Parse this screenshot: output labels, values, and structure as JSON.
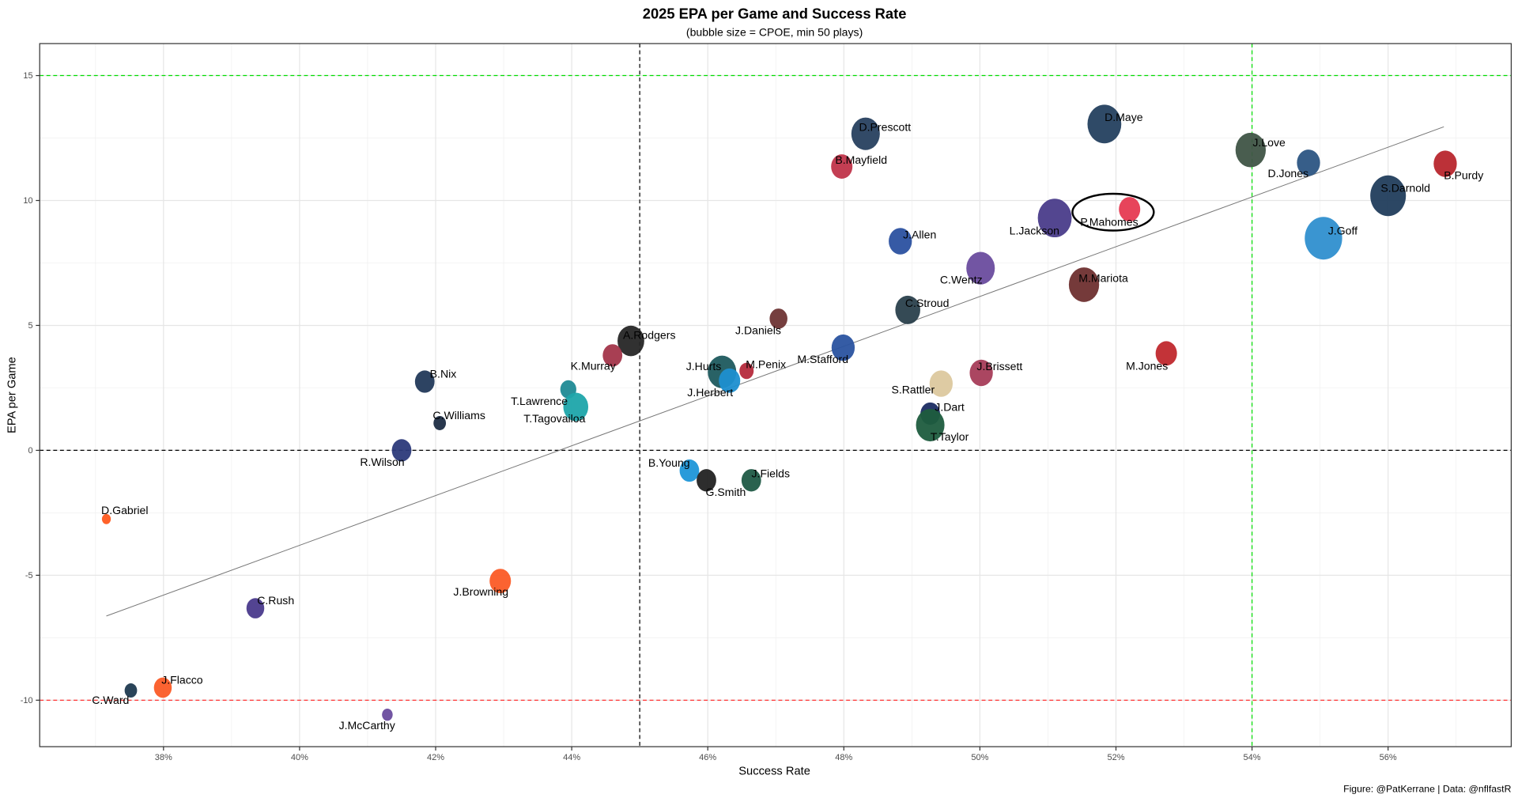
{
  "chart_data": {
    "type": "scatter",
    "title": "2025 EPA per Game and Success Rate",
    "subtitle": "(bubble size = CPOE, min 50 plays)",
    "xlabel": "Success Rate",
    "ylabel": "EPA per Game",
    "caption": "Figure: @PatKerrane | Data: @nflfastR",
    "xlim": [
      36.18,
      57.81
    ],
    "ylim": [
      -11.86,
      16.28
    ],
    "x_ticks": [
      38,
      40,
      42,
      44,
      46,
      48,
      50,
      52,
      54,
      56
    ],
    "x_tick_labels": [
      "38%",
      "40%",
      "42%",
      "44%",
      "46%",
      "48%",
      "50%",
      "52%",
      "54%",
      "56%"
    ],
    "y_ticks": [
      -10,
      -5,
      0,
      5,
      10,
      15
    ],
    "y_tick_labels": [
      "-10",
      "-5",
      "0",
      "5",
      "10",
      "15"
    ],
    "grid": true,
    "reference_lines": [
      {
        "axis": "x",
        "value": 45,
        "color": "#000000"
      },
      {
        "axis": "x",
        "value": 54,
        "color": "#00dd00"
      },
      {
        "axis": "y",
        "value": 0,
        "color": "#000000"
      },
      {
        "axis": "y",
        "value": 15,
        "color": "#00dd00"
      },
      {
        "axis": "y",
        "value": -10,
        "color": "#ff3333"
      }
    ],
    "trend_line": {
      "x": [
        37.16,
        56.82
      ],
      "y": [
        -6.63,
        12.95
      ],
      "color": "#777777"
    },
    "highlight": "P.Mahomes",
    "points": [
      {
        "name": "D.Prescott",
        "x": 48.32,
        "y": 12.67,
        "size": 16,
        "color": "#27405f"
      },
      {
        "name": "D.Maye",
        "x": 51.83,
        "y": 13.06,
        "size": 19,
        "color": "#24405f"
      },
      {
        "name": "B.Mayfield",
        "x": 47.97,
        "y": 11.36,
        "size": 12,
        "color": "#c0344a"
      },
      {
        "name": "J.Love",
        "x": 53.98,
        "y": 12.02,
        "size": 17,
        "color": "#3f5446"
      },
      {
        "name": "D.Jones",
        "x": 54.83,
        "y": 11.51,
        "size": 13,
        "color": "#2c5583"
      },
      {
        "name": "B.Purdy",
        "x": 56.84,
        "y": 11.47,
        "size": 13,
        "color": "#b8262d"
      },
      {
        "name": "S.Darnold",
        "x": 56.0,
        "y": 10.19,
        "size": 20,
        "color": "#213d5c"
      },
      {
        "name": "P.Mahomes",
        "x": 52.2,
        "y": 9.65,
        "size": 12,
        "color": "#e63a52"
      },
      {
        "name": "L.Jackson",
        "x": 51.1,
        "y": 9.3,
        "size": 19,
        "color": "#4a3c8a"
      },
      {
        "name": "J.Goff",
        "x": 55.05,
        "y": 8.49,
        "size": 21,
        "color": "#2f8fcf"
      },
      {
        "name": "J.Allen",
        "x": 48.83,
        "y": 8.37,
        "size": 13,
        "color": "#2b51a0"
      },
      {
        "name": "C.Wentz",
        "x": 50.01,
        "y": 7.29,
        "size": 16,
        "color": "#6a4c9e"
      },
      {
        "name": "M.Mariota",
        "x": 51.53,
        "y": 6.63,
        "size": 17,
        "color": "#6e2f2f"
      },
      {
        "name": "C.Stroud",
        "x": 48.94,
        "y": 5.62,
        "size": 14,
        "color": "#2a404c"
      },
      {
        "name": "J.Daniels",
        "x": 47.04,
        "y": 5.27,
        "size": 10,
        "color": "#6e3434"
      },
      {
        "name": "A.Rodgers",
        "x": 44.87,
        "y": 4.38,
        "size": 15,
        "color": "#262626"
      },
      {
        "name": "K.Murray",
        "x": 44.6,
        "y": 3.8,
        "size": 11,
        "color": "#a3354a"
      },
      {
        "name": "M.Stafford",
        "x": 47.99,
        "y": 4.11,
        "size": 13,
        "color": "#2a53a0"
      },
      {
        "name": "M.Jones",
        "x": 52.74,
        "y": 3.88,
        "size": 12,
        "color": "#c0282d"
      },
      {
        "name": "J.Hurts",
        "x": 46.21,
        "y": 3.14,
        "size": 16,
        "color": "#1d5a5e"
      },
      {
        "name": "M.Penix",
        "x": 46.57,
        "y": 3.18,
        "size": 8,
        "color": "#b52a3c"
      },
      {
        "name": "J.Herbert",
        "x": 46.32,
        "y": 2.79,
        "size": 12,
        "color": "#1d8fd0"
      },
      {
        "name": "J.Brissett",
        "x": 50.02,
        "y": 3.1,
        "size": 13,
        "color": "#a63c58"
      },
      {
        "name": "S.Rattler",
        "x": 49.43,
        "y": 2.67,
        "size": 13,
        "color": "#dcc89e"
      },
      {
        "name": "B.Nix",
        "x": 41.84,
        "y": 2.75,
        "size": 11,
        "color": "#22395a"
      },
      {
        "name": "T.Lawrence",
        "x": 43.95,
        "y": 2.44,
        "size": 9,
        "color": "#1f8a95"
      },
      {
        "name": "T.Tagovailoa",
        "x": 44.06,
        "y": 1.74,
        "size": 14,
        "color": "#1ea5aa"
      },
      {
        "name": "C.Williams",
        "x": 42.06,
        "y": 1.09,
        "size": 7,
        "color": "#1e2d45"
      },
      {
        "name": "J.Dart",
        "x": 49.27,
        "y": 1.47,
        "size": 11,
        "color": "#1b2c62"
      },
      {
        "name": "T.Taylor",
        "x": 49.27,
        "y": 1.01,
        "size": 16,
        "color": "#1e5c3e"
      },
      {
        "name": "R.Wilson",
        "x": 41.5,
        "y": 0.0,
        "size": 11,
        "color": "#2c3a7a"
      },
      {
        "name": "B.Young",
        "x": 45.73,
        "y": -0.81,
        "size": 11,
        "color": "#1e96d8"
      },
      {
        "name": "G.Smith",
        "x": 45.98,
        "y": -1.2,
        "size": 11,
        "color": "#222222"
      },
      {
        "name": "J.Fields",
        "x": 46.64,
        "y": -1.2,
        "size": 11,
        "color": "#1f5a46"
      },
      {
        "name": "D.Gabriel",
        "x": 37.16,
        "y": -2.75,
        "size": 5,
        "color": "#ff5a1f"
      },
      {
        "name": "J.Browning",
        "x": 42.95,
        "y": -5.23,
        "size": 12,
        "color": "#fb5b26"
      },
      {
        "name": "C.Rush",
        "x": 39.35,
        "y": -6.32,
        "size": 10,
        "color": "#4a3a8c"
      },
      {
        "name": "J.Flacco",
        "x": 37.99,
        "y": -9.5,
        "size": 10,
        "color": "#fb5b26"
      },
      {
        "name": "C.Ward",
        "x": 37.52,
        "y": -9.61,
        "size": 7,
        "color": "#1f3a50"
      },
      {
        "name": "J.McCarthy",
        "x": 41.29,
        "y": -10.58,
        "size": 6,
        "color": "#6a4c9e"
      }
    ]
  }
}
